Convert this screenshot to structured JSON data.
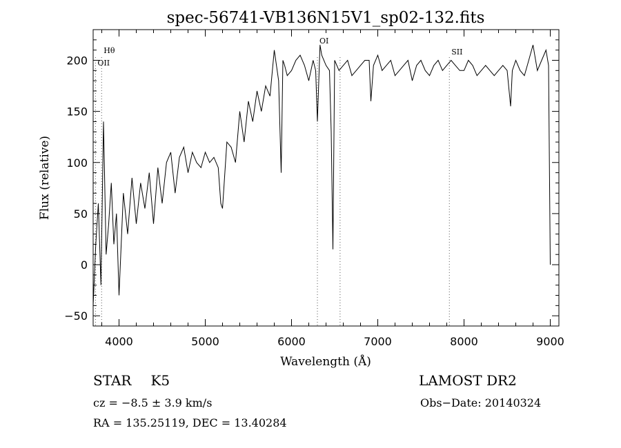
{
  "chart_data": {
    "type": "line",
    "title": "spec-56741-VB136N15V1_sp02-132.fits",
    "xlabel": "Wavelength (Å)",
    "ylabel": "Flux (relative)",
    "xlim": [
      3700,
      9100
    ],
    "ylim": [
      -60,
      230
    ],
    "xticks": [
      4000,
      5000,
      6000,
      7000,
      8000,
      9000
    ],
    "xtick_labels": [
      "4000",
      "5000",
      "6000",
      "7000",
      "8000",
      "9000"
    ],
    "yticks": [
      -50,
      0,
      50,
      100,
      150,
      200
    ],
    "ytick_labels": [
      "−50",
      "0",
      "50",
      "100",
      "150",
      "200"
    ],
    "grid": false,
    "line_color": "#000000",
    "marker_color": "#555555",
    "line_markers": [
      {
        "label": "Hθ",
        "x": 3798
      },
      {
        "label": "OII",
        "x": 3727
      },
      {
        "label": "OI",
        "x": 6300
      },
      {
        "label": "",
        "x": 6563
      },
      {
        "label": "SII",
        "x": 7830
      }
    ],
    "x": [
      3700,
      3730,
      3760,
      3790,
      3820,
      3850,
      3880,
      3910,
      3940,
      3970,
      4000,
      4050,
      4100,
      4150,
      4200,
      4250,
      4300,
      4350,
      4400,
      4450,
      4500,
      4550,
      4600,
      4650,
      4700,
      4750,
      4800,
      4850,
      4900,
      4950,
      5000,
      5050,
      5100,
      5150,
      5180,
      5200,
      5250,
      5300,
      5350,
      5400,
      5450,
      5500,
      5550,
      5600,
      5650,
      5700,
      5750,
      5800,
      5850,
      5880,
      5900,
      5920,
      5950,
      6000,
      6050,
      6100,
      6150,
      6200,
      6250,
      6280,
      6300,
      6330,
      6350,
      6400,
      6440,
      6460,
      6480,
      6500,
      6550,
      6600,
      6650,
      6700,
      6750,
      6800,
      6850,
      6900,
      6920,
      6950,
      7000,
      7050,
      7100,
      7150,
      7200,
      7250,
      7300,
      7350,
      7400,
      7450,
      7500,
      7550,
      7600,
      7650,
      7700,
      7750,
      7800,
      7850,
      7900,
      7950,
      8000,
      8050,
      8100,
      8150,
      8200,
      8250,
      8300,
      8350,
      8400,
      8450,
      8500,
      8540,
      8560,
      8600,
      8650,
      8700,
      8750,
      8800,
      8820,
      8850,
      8900,
      8950,
      8980,
      9000
    ],
    "y": [
      -40,
      20,
      60,
      -20,
      140,
      10,
      40,
      80,
      20,
      50,
      -30,
      70,
      30,
      85,
      40,
      80,
      55,
      90,
      40,
      95,
      60,
      100,
      110,
      70,
      105,
      115,
      90,
      110,
      100,
      95,
      110,
      100,
      105,
      95,
      60,
      55,
      120,
      115,
      100,
      150,
      120,
      160,
      140,
      170,
      150,
      175,
      165,
      210,
      180,
      90,
      200,
      195,
      185,
      190,
      200,
      205,
      195,
      180,
      200,
      190,
      140,
      215,
      205,
      195,
      190,
      130,
      15,
      200,
      190,
      195,
      200,
      185,
      190,
      195,
      200,
      200,
      160,
      195,
      205,
      190,
      195,
      200,
      185,
      190,
      195,
      200,
      180,
      195,
      200,
      190,
      185,
      195,
      200,
      190,
      195,
      200,
      195,
      190,
      190,
      200,
      195,
      185,
      190,
      195,
      190,
      185,
      190,
      195,
      190,
      155,
      190,
      200,
      190,
      185,
      200,
      215,
      205,
      190,
      200,
      210,
      195,
      0
    ]
  },
  "info": {
    "object_class": "STAR",
    "subclass": "K5",
    "survey": "LAMOST DR2",
    "cz": "cz = −8.5 ± 3.9 km/s",
    "obs_date": "Obs−Date: 20140324",
    "radec": "RA = 135.25119, DEC =  13.40284"
  }
}
